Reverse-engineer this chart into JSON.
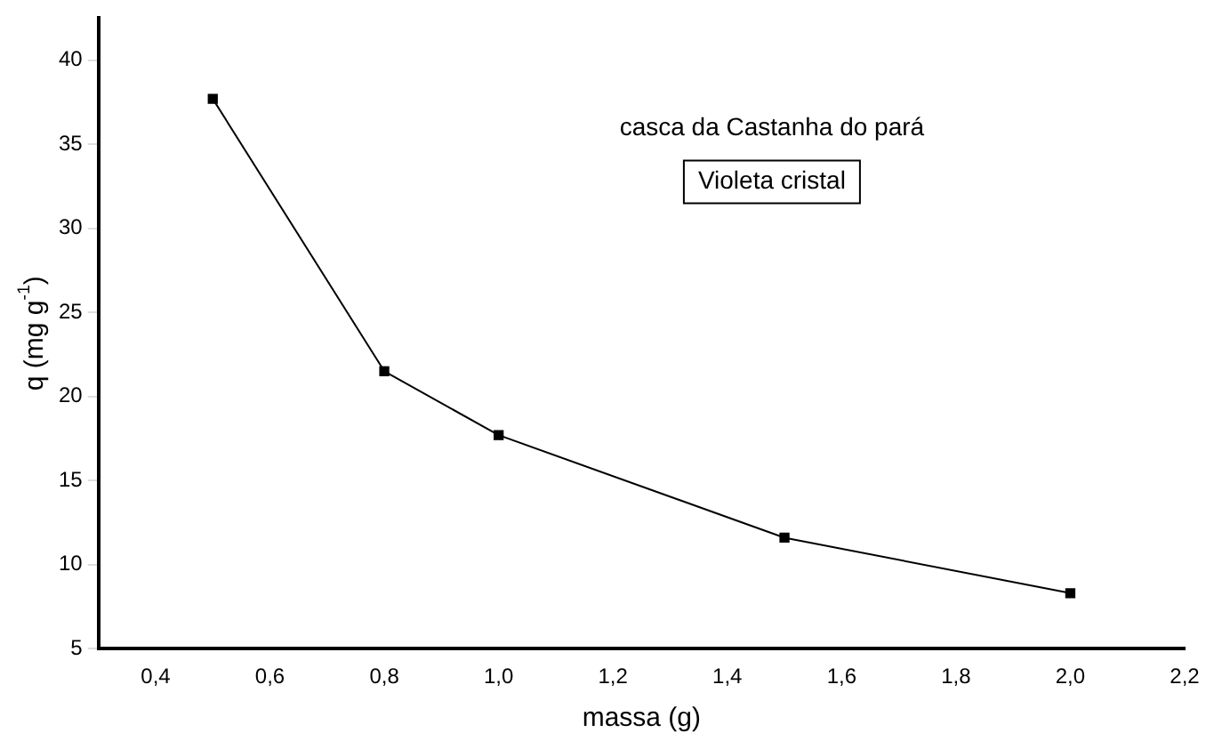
{
  "chart_data": {
    "type": "line",
    "xlabel": "massa (g)",
    "ylabel": "q (mg g$^{-1}$)",
    "annotations": [
      "casca da Castanha do pará",
      "Violeta cristal"
    ],
    "x": [
      0.5,
      0.8,
      1.0,
      1.5,
      2.0
    ],
    "series": [
      {
        "color": "#000000",
        "values": [
          37.7,
          21.5,
          17.7,
          11.6,
          8.3
        ]
      }
    ],
    "xlim": [
      0.3,
      2.2
    ],
    "xticks": [
      {
        "value": 0.4,
        "label": "0,4"
      },
      {
        "value": 0.6,
        "label": "0,6"
      },
      {
        "value": 0.8,
        "label": "0,8"
      },
      {
        "value": 1.0,
        "label": "1,0"
      },
      {
        "value": 1.2,
        "label": "1,2"
      },
      {
        "value": 1.4,
        "label": "1,4"
      },
      {
        "value": 1.6,
        "label": "1,6"
      },
      {
        "value": 1.8,
        "label": "1,8"
      },
      {
        "value": 2.0,
        "label": "2,0"
      },
      {
        "value": 2.2,
        "label": "2,2"
      }
    ],
    "ylim": [
      5,
      42.5
    ],
    "yticks": [
      5,
      10,
      15,
      20,
      25,
      30,
      35,
      40
    ],
    "grid": false,
    "legend": false,
    "marker": "square",
    "line_style": "solid"
  }
}
